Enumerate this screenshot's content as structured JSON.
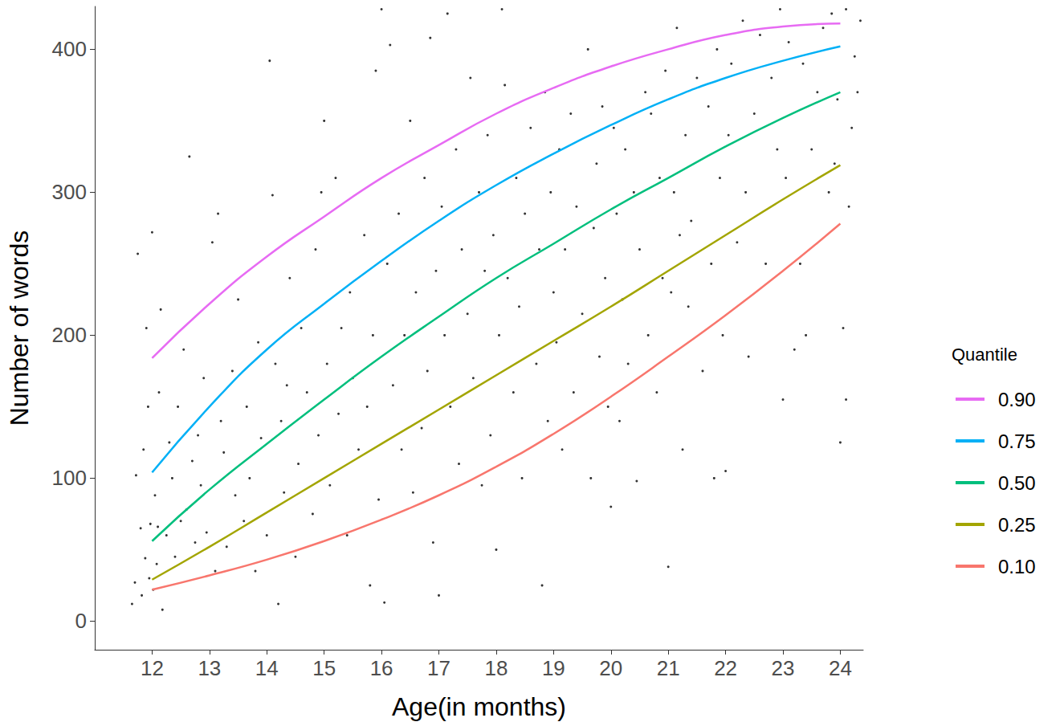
{
  "chart_data": {
    "type": "scatter",
    "x_label": "Age(in months)",
    "y_label": "Number of words",
    "legend_title": "Quantile",
    "legend": "right",
    "grid": false,
    "color": "#000000",
    "marker": "circle",
    "xlim": [
      11,
      24.4
    ],
    "xticks": [
      12,
      13,
      14,
      15,
      16,
      17,
      18,
      19,
      20,
      21,
      22,
      23,
      24
    ],
    "ylim": [
      -20,
      430
    ],
    "yticks": [
      0,
      100,
      200,
      300,
      400
    ],
    "points": [
      [
        11.65,
        12
      ],
      [
        11.7,
        27
      ],
      [
        11.72,
        102
      ],
      [
        11.75,
        257
      ],
      [
        11.8,
        65
      ],
      [
        11.82,
        18
      ],
      [
        11.85,
        120
      ],
      [
        11.88,
        44
      ],
      [
        11.9,
        205
      ],
      [
        11.93,
        150
      ],
      [
        11.95,
        30
      ],
      [
        11.97,
        68
      ],
      [
        12.0,
        272
      ],
      [
        12.02,
        22
      ],
      [
        12.05,
        88
      ],
      [
        12.08,
        40
      ],
      [
        12.1,
        66
      ],
      [
        12.12,
        160
      ],
      [
        12.15,
        218
      ],
      [
        12.18,
        8
      ],
      [
        12.25,
        60
      ],
      [
        12.3,
        125
      ],
      [
        12.35,
        100
      ],
      [
        12.4,
        45
      ],
      [
        12.45,
        150
      ],
      [
        12.5,
        70
      ],
      [
        12.55,
        190
      ],
      [
        12.6,
        78
      ],
      [
        12.65,
        325
      ],
      [
        12.7,
        112
      ],
      [
        12.75,
        55
      ],
      [
        12.8,
        130
      ],
      [
        12.85,
        95
      ],
      [
        12.9,
        170
      ],
      [
        12.95,
        62
      ],
      [
        13.05,
        265
      ],
      [
        13.1,
        35
      ],
      [
        13.15,
        285
      ],
      [
        13.2,
        140
      ],
      [
        13.25,
        118
      ],
      [
        13.3,
        52
      ],
      [
        13.4,
        175
      ],
      [
        13.45,
        88
      ],
      [
        13.5,
        225
      ],
      [
        13.6,
        70
      ],
      [
        13.65,
        150
      ],
      [
        13.7,
        100
      ],
      [
        13.8,
        35
      ],
      [
        13.85,
        195
      ],
      [
        13.9,
        128
      ],
      [
        14.0,
        60
      ],
      [
        14.05,
        392
      ],
      [
        14.1,
        298
      ],
      [
        14.15,
        180
      ],
      [
        14.2,
        12
      ],
      [
        14.25,
        140
      ],
      [
        14.3,
        90
      ],
      [
        14.35,
        165
      ],
      [
        14.4,
        240
      ],
      [
        14.5,
        45
      ],
      [
        14.55,
        110
      ],
      [
        14.6,
        205
      ],
      [
        14.7,
        160
      ],
      [
        14.8,
        75
      ],
      [
        14.85,
        260
      ],
      [
        14.9,
        130
      ],
      [
        14.95,
        300
      ],
      [
        15.0,
        350
      ],
      [
        15.05,
        180
      ],
      [
        15.1,
        95
      ],
      [
        15.2,
        310
      ],
      [
        15.25,
        145
      ],
      [
        15.3,
        205
      ],
      [
        15.4,
        60
      ],
      [
        15.45,
        230
      ],
      [
        15.5,
        170
      ],
      [
        15.6,
        120
      ],
      [
        15.7,
        270
      ],
      [
        15.75,
        150
      ],
      [
        15.8,
        25
      ],
      [
        15.85,
        200
      ],
      [
        15.9,
        385
      ],
      [
        15.95,
        85
      ],
      [
        16.0,
        428
      ],
      [
        16.05,
        13
      ],
      [
        16.1,
        250
      ],
      [
        16.15,
        403
      ],
      [
        16.2,
        165
      ],
      [
        16.3,
        285
      ],
      [
        16.35,
        120
      ],
      [
        16.4,
        200
      ],
      [
        16.5,
        350
      ],
      [
        16.55,
        90
      ],
      [
        16.6,
        230
      ],
      [
        16.7,
        135
      ],
      [
        16.75,
        310
      ],
      [
        16.8,
        175
      ],
      [
        16.85,
        408
      ],
      [
        16.9,
        55
      ],
      [
        16.95,
        245
      ],
      [
        17.0,
        18
      ],
      [
        17.05,
        290
      ],
      [
        17.1,
        200
      ],
      [
        17.15,
        425
      ],
      [
        17.2,
        150
      ],
      [
        17.3,
        330
      ],
      [
        17.35,
        110
      ],
      [
        17.4,
        260
      ],
      [
        17.5,
        215
      ],
      [
        17.55,
        380
      ],
      [
        17.6,
        170
      ],
      [
        17.7,
        300
      ],
      [
        17.75,
        95
      ],
      [
        17.8,
        245
      ],
      [
        17.85,
        340
      ],
      [
        17.9,
        130
      ],
      [
        17.95,
        270
      ],
      [
        18.0,
        50
      ],
      [
        18.05,
        200
      ],
      [
        18.1,
        428
      ],
      [
        18.15,
        375
      ],
      [
        18.2,
        240
      ],
      [
        18.3,
        160
      ],
      [
        18.35,
        310
      ],
      [
        18.4,
        220
      ],
      [
        18.45,
        100
      ],
      [
        18.5,
        285
      ],
      [
        18.6,
        345
      ],
      [
        18.7,
        180
      ],
      [
        18.75,
        260
      ],
      [
        18.8,
        25
      ],
      [
        18.85,
        370
      ],
      [
        18.9,
        140
      ],
      [
        18.95,
        300
      ],
      [
        19.0,
        230
      ],
      [
        19.05,
        195
      ],
      [
        19.1,
        330
      ],
      [
        19.15,
        120
      ],
      [
        19.2,
        260
      ],
      [
        19.3,
        355
      ],
      [
        19.35,
        160
      ],
      [
        19.4,
        290
      ],
      [
        19.5,
        215
      ],
      [
        19.6,
        400
      ],
      [
        19.65,
        100
      ],
      [
        19.7,
        275
      ],
      [
        19.75,
        320
      ],
      [
        19.8,
        185
      ],
      [
        19.85,
        360
      ],
      [
        19.9,
        240
      ],
      [
        19.95,
        150
      ],
      [
        20.0,
        80
      ],
      [
        20.05,
        345
      ],
      [
        20.1,
        285
      ],
      [
        20.15,
        140
      ],
      [
        20.2,
        225
      ],
      [
        20.25,
        330
      ],
      [
        20.3,
        180
      ],
      [
        20.4,
        300
      ],
      [
        20.45,
        98
      ],
      [
        20.5,
        260
      ],
      [
        20.6,
        370
      ],
      [
        20.65,
        200
      ],
      [
        20.7,
        355
      ],
      [
        20.8,
        160
      ],
      [
        20.85,
        310
      ],
      [
        20.9,
        240
      ],
      [
        20.95,
        385
      ],
      [
        21.0,
        38
      ],
      [
        21.05,
        230
      ],
      [
        21.1,
        300
      ],
      [
        21.15,
        415
      ],
      [
        21.2,
        270
      ],
      [
        21.25,
        120
      ],
      [
        21.3,
        340
      ],
      [
        21.35,
        220
      ],
      [
        21.4,
        280
      ],
      [
        21.5,
        380
      ],
      [
        21.6,
        175
      ],
      [
        21.7,
        360
      ],
      [
        21.75,
        250
      ],
      [
        21.8,
        100
      ],
      [
        21.85,
        400
      ],
      [
        21.9,
        310
      ],
      [
        21.95,
        200
      ],
      [
        22.0,
        105
      ],
      [
        22.05,
        340
      ],
      [
        22.1,
        390
      ],
      [
        22.2,
        265
      ],
      [
        22.3,
        420
      ],
      [
        22.35,
        300
      ],
      [
        22.4,
        185
      ],
      [
        22.5,
        355
      ],
      [
        22.6,
        410
      ],
      [
        22.7,
        250
      ],
      [
        22.8,
        380
      ],
      [
        22.9,
        330
      ],
      [
        22.95,
        428
      ],
      [
        23.0,
        155
      ],
      [
        23.05,
        310
      ],
      [
        23.1,
        405
      ],
      [
        23.2,
        190
      ],
      [
        23.3,
        250
      ],
      [
        23.35,
        390
      ],
      [
        23.4,
        200
      ],
      [
        23.5,
        330
      ],
      [
        23.6,
        370
      ],
      [
        23.7,
        415
      ],
      [
        23.8,
        300
      ],
      [
        23.85,
        425
      ],
      [
        23.9,
        320
      ],
      [
        23.95,
        365
      ],
      [
        24.0,
        125
      ],
      [
        24.05,
        205
      ],
      [
        24.1,
        155
      ],
      [
        24.15,
        290
      ],
      [
        24.2,
        345
      ],
      [
        24.25,
        395
      ],
      [
        24.3,
        370
      ],
      [
        24.35,
        420
      ],
      [
        24.1,
        428
      ]
    ],
    "x": [
      12,
      13,
      14,
      15,
      16,
      17,
      18,
      19,
      20,
      21,
      22,
      23,
      24
    ],
    "series": [
      {
        "name": "0.90",
        "type": "line",
        "color": "#E76BF3",
        "line_style": "solid",
        "values": [
          184,
          222,
          255,
          283,
          310,
          333,
          355,
          373,
          388,
          400,
          410,
          416,
          418
        ]
      },
      {
        "name": "0.75",
        "type": "line",
        "color": "#00B0F6",
        "line_style": "solid",
        "values": [
          104,
          150,
          190,
          222,
          252,
          280,
          305,
          327,
          347,
          365,
          380,
          392,
          402
        ]
      },
      {
        "name": "0.50",
        "type": "line",
        "color": "#00BF7D",
        "line_style": "solid",
        "values": [
          56,
          92,
          124,
          155,
          185,
          213,
          240,
          264,
          288,
          310,
          332,
          352,
          370
        ]
      },
      {
        "name": "0.25",
        "type": "line",
        "color": "#A3A500",
        "line_style": "solid",
        "values": [
          29,
          52,
          76,
          100,
          124,
          148,
          172,
          196,
          220,
          245,
          270,
          295,
          319
        ]
      },
      {
        "name": "0.10",
        "type": "line",
        "color": "#F8766D",
        "line_style": "solid",
        "values": [
          22,
          32,
          43,
          56,
          71,
          88,
          108,
          131,
          157,
          185,
          214,
          245,
          278
        ]
      }
    ]
  }
}
